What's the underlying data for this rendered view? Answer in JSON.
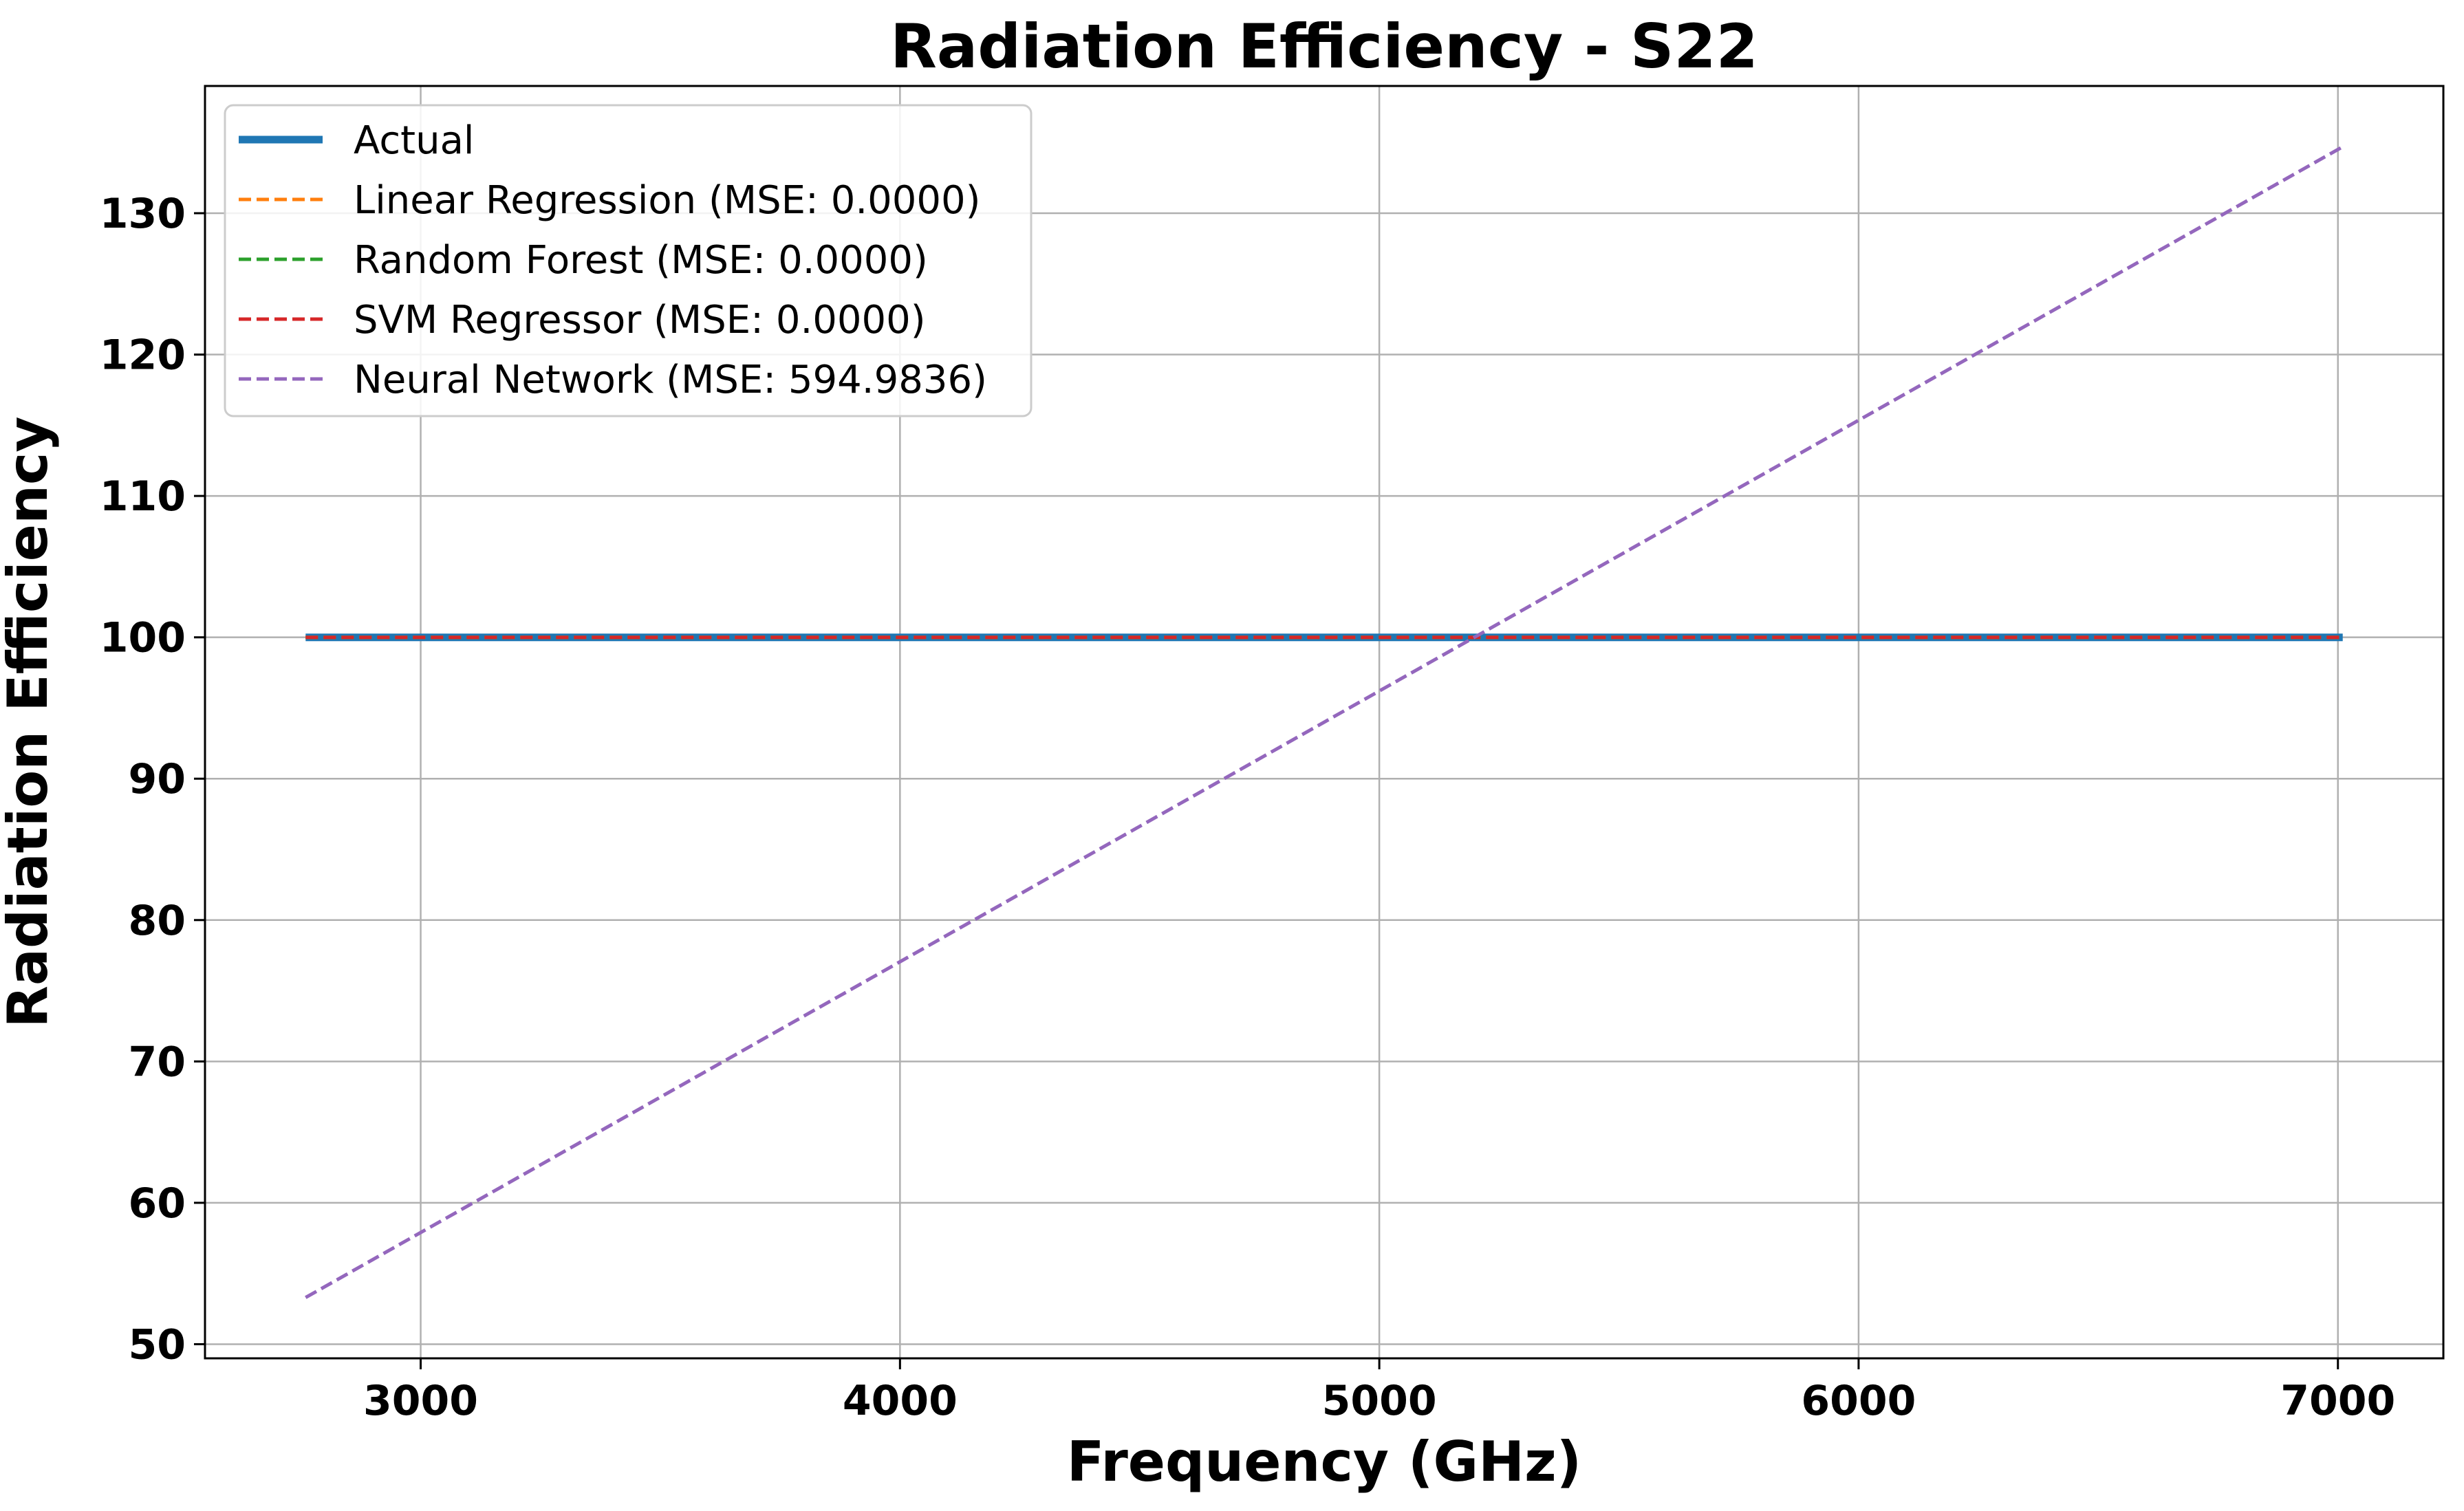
{
  "chart_data": {
    "type": "line",
    "title": "Radiation Efficiency - S22",
    "xlabel": "Frequency (GHz)",
    "ylabel": "Radiation Efficiency",
    "xlim": [
      2550,
      7220
    ],
    "ylim": [
      49,
      139
    ],
    "xticks": [
      3000,
      4000,
      5000,
      6000,
      7000
    ],
    "yticks": [
      50,
      60,
      70,
      80,
      90,
      100,
      110,
      120,
      130
    ],
    "grid": true,
    "legend_position": "upper-left",
    "series": [
      {
        "name": "Actual",
        "color": "#1f77b4",
        "style": "solid",
        "x": [
          2760,
          7010
        ],
        "y": [
          100,
          100
        ]
      },
      {
        "name": "Linear Regression (MSE: 0.0000)",
        "color": "#ff7f0e",
        "style": "dashed",
        "x": [
          2760,
          7010
        ],
        "y": [
          100,
          100
        ]
      },
      {
        "name": "Random Forest (MSE: 0.0000)",
        "color": "#2ca02c",
        "style": "dashed",
        "x": [
          2760,
          7010
        ],
        "y": [
          100,
          100
        ]
      },
      {
        "name": "SVM Regressor (MSE: 0.0000)",
        "color": "#d62728",
        "style": "dashed",
        "x": [
          2760,
          7010
        ],
        "y": [
          100,
          100
        ]
      },
      {
        "name": "Neural Network (MSE: 594.9836)",
        "color": "#9467bd",
        "style": "dashed",
        "x": [
          2760,
          7010
        ],
        "y": [
          53.3,
          134.7
        ]
      }
    ]
  }
}
